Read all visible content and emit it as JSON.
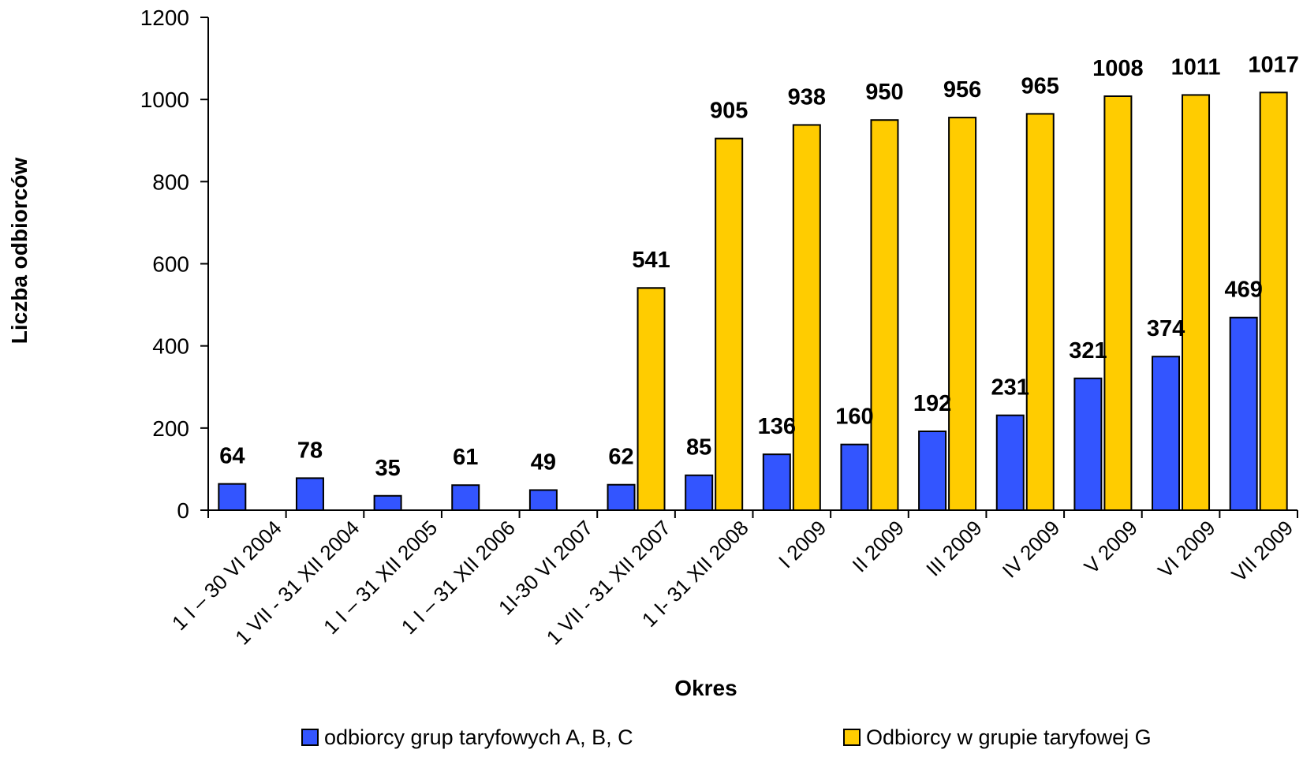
{
  "chart_data": {
    "type": "bar",
    "title": "",
    "xlabel": "Okres",
    "ylabel": "Liczba odbiorców",
    "ylim": [
      0,
      1200
    ],
    "yticks": [
      "0",
      "200",
      "400",
      "600",
      "800",
      "1000",
      "1200"
    ],
    "categories": [
      "1 I – 30 VI 2004",
      "1 VII - 31 XII 2004",
      "1 I – 31 XII 2005",
      "1 I – 31 XII 2006",
      "1I-30 VI 2007",
      "1 VII - 31 XII 2007",
      "1 I- 31 XII 2008",
      "I 2009",
      "II 2009",
      "III 2009",
      "IV 2009",
      "V 2009",
      "VI 2009",
      "VII 2009"
    ],
    "series": [
      {
        "name": "odbiorcy grup taryfowych A, B, C",
        "color": "#3355ff",
        "values": [
          64,
          78,
          35,
          61,
          49,
          62,
          85,
          136,
          160,
          192,
          231,
          321,
          374,
          469
        ]
      },
      {
        "name": "Odbiorcy w grupie taryfowej G",
        "color": "#ffcc00",
        "values": [
          null,
          null,
          null,
          null,
          null,
          541,
          905,
          938,
          950,
          956,
          965,
          1008,
          1011,
          1017
        ]
      }
    ],
    "data_labels": true,
    "grid": false,
    "legend_position": "bottom"
  }
}
